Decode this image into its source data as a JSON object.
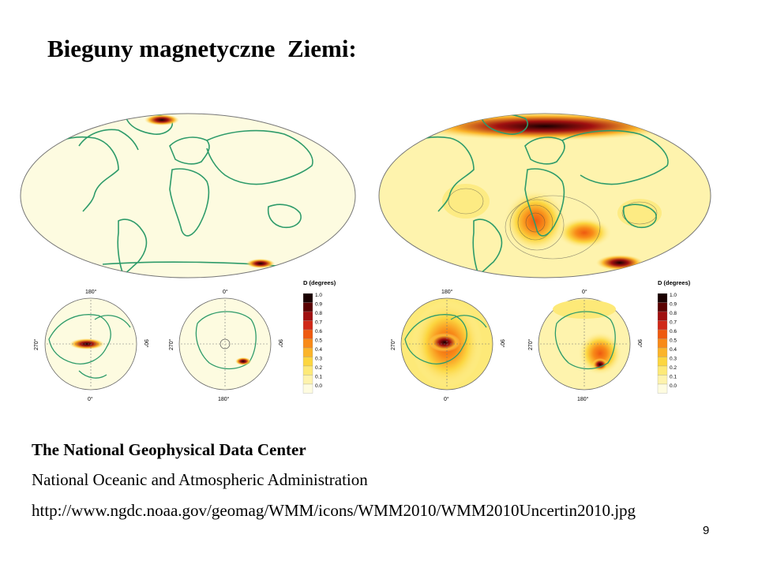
{
  "slide": {
    "title": "Bieguny magnetyczne  Ziemi:",
    "page_number": "9"
  },
  "source": {
    "organization": "The National Geophysical Data Center",
    "agency": "National Oceanic and Atmospheric Administration",
    "url": "http://www.ngdc.noaa.gov/geomag/WMM/icons/WMM2010/WMM2010Uncertin2010.jpg"
  },
  "figure": {
    "colorbar_title": "D (degrees)",
    "colorbar_ticks": [
      "1.0",
      "0.9",
      "0.8",
      "0.7",
      "0.6",
      "0.5",
      "0.4",
      "0.3",
      "0.2",
      "0.1",
      "0.0"
    ],
    "colorbar_colors": [
      "#1a0000",
      "#5a0000",
      "#a01010",
      "#d02818",
      "#ee5a10",
      "#f88a18",
      "#fbb42a",
      "#fcd640",
      "#fde978",
      "#fef3ad",
      "#fefce0"
    ],
    "polar_labels": {
      "top_north": "180°",
      "bottom_north": "0°",
      "top_south": "0°",
      "bottom_south": "180°",
      "left": "270°",
      "right": "90°"
    },
    "land_color": "#2e9b6a",
    "background_fill": "#fdfbe0"
  }
}
